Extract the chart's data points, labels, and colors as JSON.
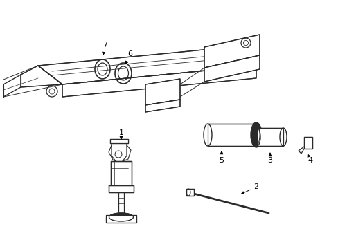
{
  "background_color": "#ffffff",
  "line_color": "#2a2a2a",
  "label_color": "#000000",
  "figsize": [
    4.89,
    3.6
  ],
  "dpi": 100,
  "lw": 0.9
}
